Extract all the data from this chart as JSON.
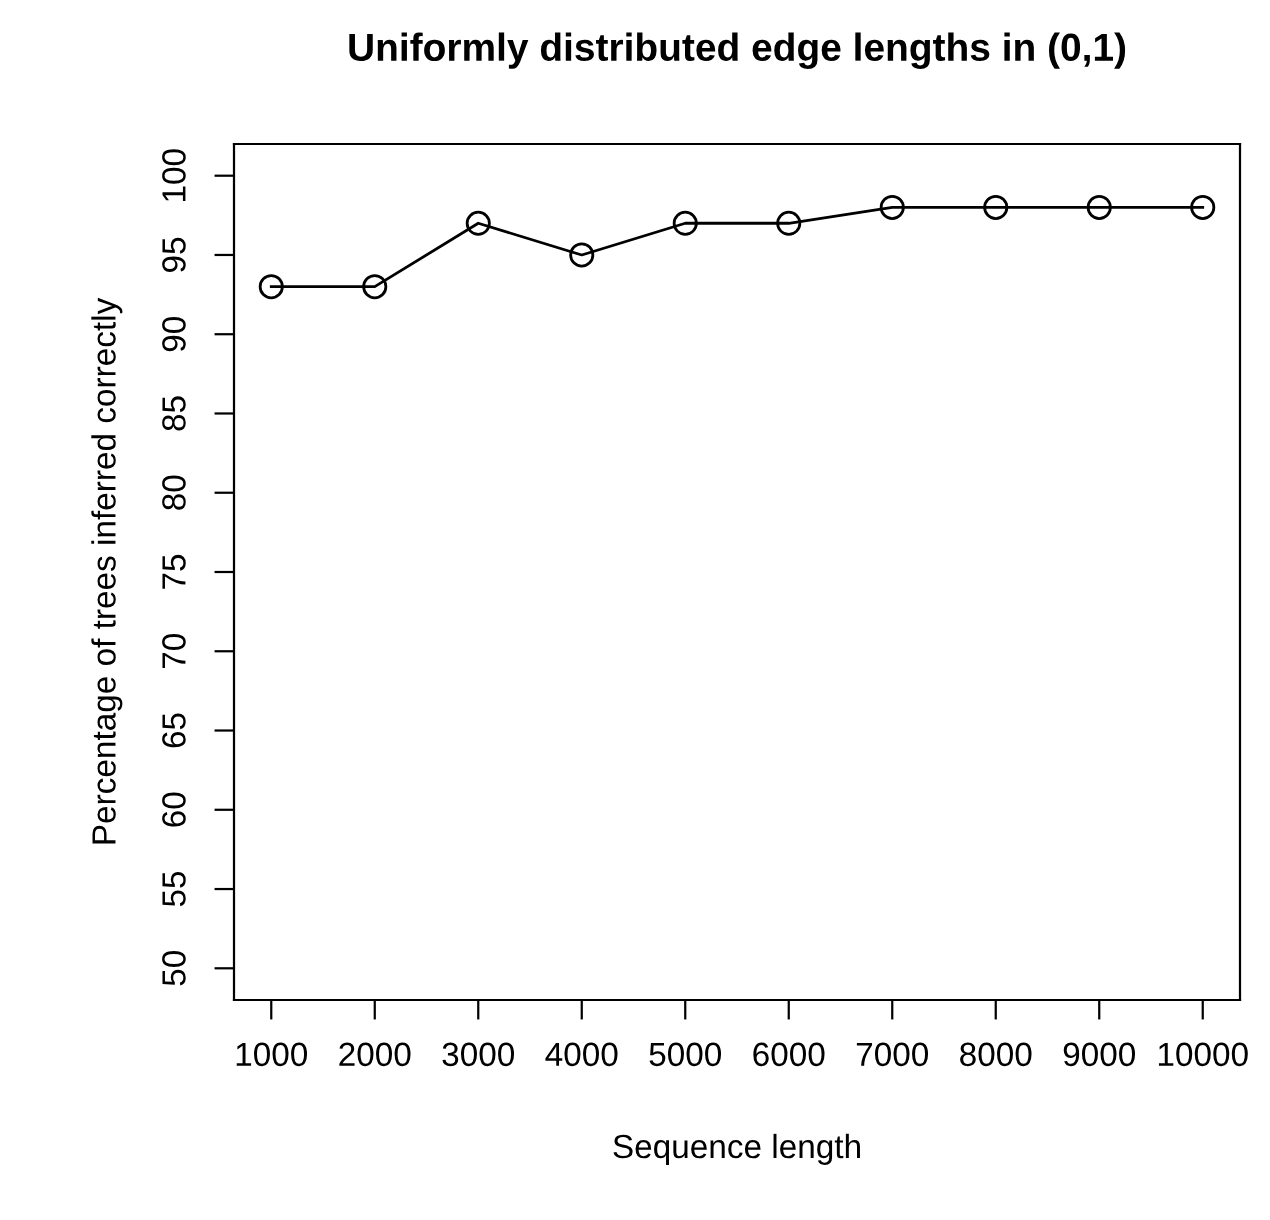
{
  "chart_data": {
    "type": "line",
    "title": "Uniformly distributed edge lengths in (0,1)",
    "xlabel": "Sequence length",
    "ylabel": "Percentage of trees inferred correctly",
    "x": [
      1000,
      2000,
      3000,
      4000,
      5000,
      6000,
      7000,
      8000,
      9000,
      10000
    ],
    "series": [
      {
        "color": "#000000",
        "values": [
          93,
          93,
          97,
          95,
          97,
          97,
          98,
          98,
          98,
          98
        ]
      }
    ],
    "xlim": [
      640,
      10360
    ],
    "ylim": [
      48,
      102
    ],
    "xticks": [
      1000,
      2000,
      3000,
      4000,
      5000,
      6000,
      7000,
      8000,
      9000,
      10000
    ],
    "yticks": [
      50,
      55,
      60,
      65,
      70,
      75,
      80,
      85,
      90,
      95,
      100
    ],
    "marker": "circle",
    "line_style": "solid",
    "grid": false,
    "legend": false
  }
}
